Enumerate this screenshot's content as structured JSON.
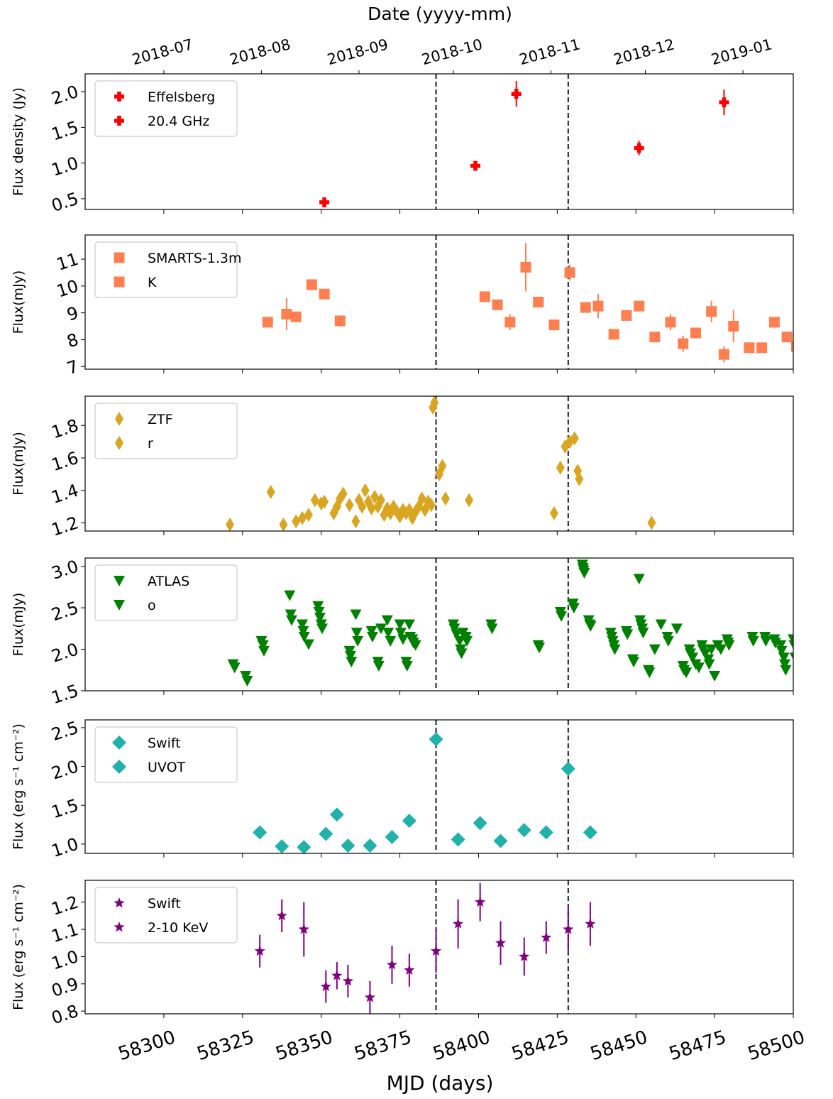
{
  "figure": {
    "top_xlabel": "Date (yyyy-mm)",
    "bottom_xlabel": "MJD (days)",
    "top_ticks": [
      {
        "label": "2018-07",
        "mjd": 58300
      },
      {
        "label": "2018-08",
        "mjd": 58331
      },
      {
        "label": "2018-09",
        "mjd": 58362
      },
      {
        "label": "2018-10",
        "mjd": 58392
      },
      {
        "label": "2018-11",
        "mjd": 58423
      },
      {
        "label": "2018-12",
        "mjd": 58453
      },
      {
        "label": "2019-01",
        "mjd": 58484
      }
    ],
    "bottom_ticks": [
      "58300",
      "58325",
      "58350",
      "58375",
      "58400",
      "58425",
      "58450",
      "58475",
      "58500"
    ],
    "vlines_mjd": [
      58386.5,
      58428.5
    ],
    "xlim": [
      58275,
      58500
    ]
  },
  "chart_data": [
    {
      "type": "scatter",
      "marker": "plus",
      "color": "#ff0000",
      "ylabel": "Flux density (Jy)",
      "ylim": [
        0.35,
        2.25
      ],
      "yticks": [
        "0.5",
        "1.0",
        "1.5",
        "2.0"
      ],
      "legend": [
        "Effelsberg",
        "20.4 GHz"
      ],
      "legend_position": "top-left",
      "points": [
        {
          "x": 58351,
          "y": 0.45,
          "err": 0.05
        },
        {
          "x": 58399,
          "y": 0.96,
          "err": 0.05
        },
        {
          "x": 58412,
          "y": 1.97,
          "err": 0.18
        },
        {
          "x": 58451,
          "y": 1.21,
          "err": 0.1
        },
        {
          "x": 58478,
          "y": 1.85,
          "err": 0.18
        }
      ]
    },
    {
      "type": "scatter",
      "marker": "square",
      "color": "#ff7f50",
      "ylabel": "Flux(mJy)",
      "ylim": [
        6.9,
        11.9
      ],
      "yticks": [
        "7",
        "8",
        "9",
        "10",
        "11"
      ],
      "legend": [
        "SMARTS-1.3m",
        "K"
      ],
      "legend_position": "top-left",
      "points": [
        {
          "x": 58333,
          "y": 8.65,
          "err": 0
        },
        {
          "x": 58339,
          "y": 8.95,
          "err": 0.6
        },
        {
          "x": 58342,
          "y": 8.85,
          "err": 0
        },
        {
          "x": 58347,
          "y": 10.05,
          "err": 0
        },
        {
          "x": 58351,
          "y": 9.7,
          "err": 0
        },
        {
          "x": 58356,
          "y": 8.7,
          "err": 0
        },
        {
          "x": 58402,
          "y": 9.6,
          "err": 0.2
        },
        {
          "x": 58406,
          "y": 9.3,
          "err": 0
        },
        {
          "x": 58410,
          "y": 8.65,
          "err": 0.3
        },
        {
          "x": 58415,
          "y": 10.7,
          "err": 0.9
        },
        {
          "x": 58419,
          "y": 9.4,
          "err": 0.2
        },
        {
          "x": 58424,
          "y": 8.55,
          "err": 0
        },
        {
          "x": 58429,
          "y": 10.5,
          "err": 0.3
        },
        {
          "x": 58434,
          "y": 9.2,
          "err": 0
        },
        {
          "x": 58438,
          "y": 9.25,
          "err": 0.45
        },
        {
          "x": 58443,
          "y": 8.2,
          "err": 0
        },
        {
          "x": 58447,
          "y": 8.9,
          "err": 0
        },
        {
          "x": 58451,
          "y": 9.25,
          "err": 0
        },
        {
          "x": 58456,
          "y": 8.1,
          "err": 0
        },
        {
          "x": 58461,
          "y": 8.65,
          "err": 0.3
        },
        {
          "x": 58465,
          "y": 7.85,
          "err": 0.3
        },
        {
          "x": 58469,
          "y": 8.25,
          "err": 0
        },
        {
          "x": 58474,
          "y": 9.05,
          "err": 0.4
        },
        {
          "x": 58478,
          "y": 7.45,
          "err": 0.3
        },
        {
          "x": 58481,
          "y": 8.5,
          "err": 0.6
        },
        {
          "x": 58486,
          "y": 7.7,
          "err": 0
        },
        {
          "x": 58490,
          "y": 7.7,
          "err": 0
        },
        {
          "x": 58494,
          "y": 8.65,
          "err": 0
        },
        {
          "x": 58498,
          "y": 8.1,
          "err": 0
        },
        {
          "x": 58501,
          "y": 7.75,
          "err": 0.4
        }
      ]
    },
    {
      "type": "scatter",
      "marker": "diamond",
      "color": "#daa520",
      "ylabel": "Flux(mJy)",
      "ylim": [
        1.15,
        1.98
      ],
      "yticks": [
        "1.2",
        "1.4",
        "1.6",
        "1.8"
      ],
      "legend": [
        "ZTF",
        "r"
      ],
      "legend_position": "top-left",
      "points": [
        {
          "x": 58321,
          "y": 1.19
        },
        {
          "x": 58334,
          "y": 1.39
        },
        {
          "x": 58338,
          "y": 1.19
        },
        {
          "x": 58342,
          "y": 1.21
        },
        {
          "x": 58344,
          "y": 1.23
        },
        {
          "x": 58346,
          "y": 1.25
        },
        {
          "x": 58348,
          "y": 1.34
        },
        {
          "x": 58350,
          "y": 1.32
        },
        {
          "x": 58351,
          "y": 1.33
        },
        {
          "x": 58354,
          "y": 1.26
        },
        {
          "x": 58355,
          "y": 1.3
        },
        {
          "x": 58356,
          "y": 1.35
        },
        {
          "x": 58357,
          "y": 1.38
        },
        {
          "x": 58359,
          "y": 1.31
        },
        {
          "x": 58361,
          "y": 1.21
        },
        {
          "x": 58362,
          "y": 1.34
        },
        {
          "x": 58363,
          "y": 1.3
        },
        {
          "x": 58364,
          "y": 1.4
        },
        {
          "x": 58365,
          "y": 1.33
        },
        {
          "x": 58366,
          "y": 1.29
        },
        {
          "x": 58367,
          "y": 1.36
        },
        {
          "x": 58368,
          "y": 1.3
        },
        {
          "x": 58369,
          "y": 1.34
        },
        {
          "x": 58370,
          "y": 1.25
        },
        {
          "x": 58371,
          "y": 1.29
        },
        {
          "x": 58372,
          "y": 1.26
        },
        {
          "x": 58373,
          "y": 1.3
        },
        {
          "x": 58374,
          "y": 1.27
        },
        {
          "x": 58375,
          "y": 1.24
        },
        {
          "x": 58376,
          "y": 1.28
        },
        {
          "x": 58377,
          "y": 1.26
        },
        {
          "x": 58378,
          "y": 1.28
        },
        {
          "x": 58379,
          "y": 1.23
        },
        {
          "x": 58380,
          "y": 1.27
        },
        {
          "x": 58381,
          "y": 1.3
        },
        {
          "x": 58382,
          "y": 1.35
        },
        {
          "x": 58383,
          "y": 1.28
        },
        {
          "x": 58384,
          "y": 1.33
        },
        {
          "x": 58385,
          "y": 1.31
        },
        {
          "x": 58385.5,
          "y": 1.91
        },
        {
          "x": 58386,
          "y": 1.94
        },
        {
          "x": 58387.5,
          "y": 1.5
        },
        {
          "x": 58388.5,
          "y": 1.55
        },
        {
          "x": 58389.5,
          "y": 1.35
        },
        {
          "x": 58397,
          "y": 1.34
        },
        {
          "x": 58424,
          "y": 1.26
        },
        {
          "x": 58426,
          "y": 1.54
        },
        {
          "x": 58427.5,
          "y": 1.67
        },
        {
          "x": 58429,
          "y": 1.7
        },
        {
          "x": 58430.5,
          "y": 1.72
        },
        {
          "x": 58431.5,
          "y": 1.52
        },
        {
          "x": 58432,
          "y": 1.47
        },
        {
          "x": 58455,
          "y": 1.2
        }
      ]
    },
    {
      "type": "scatter",
      "marker": "triangle-down",
      "color": "#008000",
      "ylabel": "Flux(mJy)",
      "ylim": [
        1.5,
        3.1
      ],
      "yticks": [
        "1.5",
        "2.0",
        "2.5",
        "3.0"
      ],
      "legend": [
        "ATLAS",
        "o"
      ],
      "legend_position": "top-left",
      "points": [
        {
          "x": 58322,
          "y": 1.82
        },
        {
          "x": 58322.5,
          "y": 1.78
        },
        {
          "x": 58326,
          "y": 1.68
        },
        {
          "x": 58326.5,
          "y": 1.62
        },
        {
          "x": 58331,
          "y": 2.1
        },
        {
          "x": 58331.5,
          "y": 2.05
        },
        {
          "x": 58331.8,
          "y": 1.98
        },
        {
          "x": 58340,
          "y": 2.65
        },
        {
          "x": 58340.3,
          "y": 2.42
        },
        {
          "x": 58340.6,
          "y": 2.35
        },
        {
          "x": 58344,
          "y": 2.3
        },
        {
          "x": 58344.3,
          "y": 2.22
        },
        {
          "x": 58344.6,
          "y": 2.15
        },
        {
          "x": 58346,
          "y": 2.06
        },
        {
          "x": 58349,
          "y": 2.52
        },
        {
          "x": 58349.3,
          "y": 2.45
        },
        {
          "x": 58349.6,
          "y": 2.38
        },
        {
          "x": 58350,
          "y": 2.3
        },
        {
          "x": 58350.3,
          "y": 2.25
        },
        {
          "x": 58359,
          "y": 1.98
        },
        {
          "x": 58359.3,
          "y": 1.92
        },
        {
          "x": 58359.6,
          "y": 1.85
        },
        {
          "x": 58361,
          "y": 2.42
        },
        {
          "x": 58361.3,
          "y": 2.2
        },
        {
          "x": 58361.6,
          "y": 2.1
        },
        {
          "x": 58366,
          "y": 2.22
        },
        {
          "x": 58366.3,
          "y": 2.15
        },
        {
          "x": 58368,
          "y": 1.85
        },
        {
          "x": 58368.3,
          "y": 1.8
        },
        {
          "x": 58369,
          "y": 2.25
        },
        {
          "x": 58371,
          "y": 2.35
        },
        {
          "x": 58371.3,
          "y": 2.2
        },
        {
          "x": 58372,
          "y": 2.1
        },
        {
          "x": 58375,
          "y": 2.3
        },
        {
          "x": 58375.3,
          "y": 2.2
        },
        {
          "x": 58376,
          "y": 2.12
        },
        {
          "x": 58377,
          "y": 1.85
        },
        {
          "x": 58377.3,
          "y": 1.8
        },
        {
          "x": 58378,
          "y": 2.3
        },
        {
          "x": 58378.3,
          "y": 2.15
        },
        {
          "x": 58379,
          "y": 2.12
        },
        {
          "x": 58379.3,
          "y": 2.08
        },
        {
          "x": 58380,
          "y": 2.05
        },
        {
          "x": 58392,
          "y": 2.3
        },
        {
          "x": 58392.3,
          "y": 2.25
        },
        {
          "x": 58393,
          "y": 2.18
        },
        {
          "x": 58394,
          "y": 2.1
        },
        {
          "x": 58394.3,
          "y": 2.0
        },
        {
          "x": 58394.6,
          "y": 1.95
        },
        {
          "x": 58395,
          "y": 2.2
        },
        {
          "x": 58396,
          "y": 2.15
        },
        {
          "x": 58396.3,
          "y": 2.1
        },
        {
          "x": 58404,
          "y": 2.3
        },
        {
          "x": 58404.3,
          "y": 2.25
        },
        {
          "x": 58419,
          "y": 2.05
        },
        {
          "x": 58419.3,
          "y": 2.02
        },
        {
          "x": 58426,
          "y": 2.45
        },
        {
          "x": 58426.3,
          "y": 2.4
        },
        {
          "x": 58430,
          "y": 2.55
        },
        {
          "x": 58430.3,
          "y": 2.5
        },
        {
          "x": 58433,
          "y": 3.02
        },
        {
          "x": 58433.2,
          "y": 2.98
        },
        {
          "x": 58433.4,
          "y": 2.95
        },
        {
          "x": 58433.6,
          "y": 2.92
        },
        {
          "x": 58435,
          "y": 2.35
        },
        {
          "x": 58435.3,
          "y": 2.3
        },
        {
          "x": 58435.6,
          "y": 2.28
        },
        {
          "x": 58442,
          "y": 2.2
        },
        {
          "x": 58442.3,
          "y": 2.15
        },
        {
          "x": 58442.6,
          "y": 2.1
        },
        {
          "x": 58443,
          "y": 2.05
        },
        {
          "x": 58443.3,
          "y": 2.0
        },
        {
          "x": 58447,
          "y": 2.22
        },
        {
          "x": 58447.3,
          "y": 2.18
        },
        {
          "x": 58449,
          "y": 1.88
        },
        {
          "x": 58449.3,
          "y": 1.85
        },
        {
          "x": 58451,
          "y": 2.85
        },
        {
          "x": 58451.3,
          "y": 2.35
        },
        {
          "x": 58451.6,
          "y": 2.3
        },
        {
          "x": 58452,
          "y": 2.25
        },
        {
          "x": 58452.3,
          "y": 2.2
        },
        {
          "x": 58454,
          "y": 1.75
        },
        {
          "x": 58454.3,
          "y": 1.72
        },
        {
          "x": 58456,
          "y": 2.0
        },
        {
          "x": 58458,
          "y": 2.3
        },
        {
          "x": 58460,
          "y": 2.15
        },
        {
          "x": 58460.3,
          "y": 2.1
        },
        {
          "x": 58463,
          "y": 2.25
        },
        {
          "x": 58465,
          "y": 1.8
        },
        {
          "x": 58465.3,
          "y": 1.75
        },
        {
          "x": 58466,
          "y": 1.72
        },
        {
          "x": 58467,
          "y": 2.0
        },
        {
          "x": 58467.3,
          "y": 1.95
        },
        {
          "x": 58468,
          "y": 1.9
        },
        {
          "x": 58469,
          "y": 1.82
        },
        {
          "x": 58470,
          "y": 1.78
        },
        {
          "x": 58471,
          "y": 2.05
        },
        {
          "x": 58471.3,
          "y": 2.0
        },
        {
          "x": 58472,
          "y": 1.95
        },
        {
          "x": 58473,
          "y": 1.88
        },
        {
          "x": 58473.3,
          "y": 1.82
        },
        {
          "x": 58474,
          "y": 2.0
        },
        {
          "x": 58475,
          "y": 1.68
        },
        {
          "x": 58476,
          "y": 2.05
        },
        {
          "x": 58477,
          "y": 2.0
        },
        {
          "x": 58479,
          "y": 2.12
        },
        {
          "x": 58479.3,
          "y": 2.08
        },
        {
          "x": 58479.6,
          "y": 2.05
        },
        {
          "x": 58487,
          "y": 2.15
        },
        {
          "x": 58487.3,
          "y": 2.1
        },
        {
          "x": 58491,
          "y": 2.15
        },
        {
          "x": 58491.3,
          "y": 2.1
        },
        {
          "x": 58494,
          "y": 2.12
        },
        {
          "x": 58494.3,
          "y": 2.08
        },
        {
          "x": 58496,
          "y": 2.05
        },
        {
          "x": 58496.3,
          "y": 1.98
        },
        {
          "x": 58497,
          "y": 1.9
        },
        {
          "x": 58497.3,
          "y": 1.82
        },
        {
          "x": 58497.6,
          "y": 1.75
        },
        {
          "x": 58500,
          "y": 2.12
        },
        {
          "x": 58500.3,
          "y": 2.05
        },
        {
          "x": 58500.6,
          "y": 1.9
        }
      ]
    },
    {
      "type": "scatter",
      "marker": "thin-diamond",
      "color": "#20b2aa",
      "ylabel": "Flux (erg s$^{-1}$ cm$^{-2}$)",
      "ylabel_display": "Flux (erg s⁻¹ cm⁻²)",
      "ylim": [
        0.88,
        2.6
      ],
      "yticks": [
        "1.0",
        "1.5",
        "2.0",
        "2.5"
      ],
      "legend": [
        "Swift",
        "UVOT"
      ],
      "legend_position": "top-left",
      "points": [
        {
          "x": 58330.5,
          "y": 1.15
        },
        {
          "x": 58337.5,
          "y": 0.97
        },
        {
          "x": 58344.5,
          "y": 0.96
        },
        {
          "x": 58351.5,
          "y": 1.13
        },
        {
          "x": 58355,
          "y": 1.38
        },
        {
          "x": 58358.5,
          "y": 0.98
        },
        {
          "x": 58365.5,
          "y": 0.98
        },
        {
          "x": 58372.5,
          "y": 1.09
        },
        {
          "x": 58378,
          "y": 1.3
        },
        {
          "x": 58386.5,
          "y": 2.35
        },
        {
          "x": 58393.5,
          "y": 1.06
        },
        {
          "x": 58400.5,
          "y": 1.27
        },
        {
          "x": 58407,
          "y": 1.04
        },
        {
          "x": 58414.5,
          "y": 1.18
        },
        {
          "x": 58421.5,
          "y": 1.15
        },
        {
          "x": 58428.5,
          "y": 1.97
        },
        {
          "x": 58435.5,
          "y": 1.15
        }
      ]
    },
    {
      "type": "scatter",
      "marker": "star",
      "color": "#800080",
      "ylabel": "Flux (erg s$^{-1}$ cm$^{-2}$)",
      "ylabel_display": "Flux (erg s⁻¹ cm⁻²)",
      "ylim": [
        0.79,
        1.28
      ],
      "yticks": [
        "0.8",
        "0.9",
        "1.0",
        "1.1",
        "1.2"
      ],
      "legend": [
        "Swift",
        "2-10 KeV"
      ],
      "legend_position": "top-left",
      "points": [
        {
          "x": 58330.5,
          "y": 1.02,
          "err": 0.06
        },
        {
          "x": 58337.5,
          "y": 1.15,
          "err": 0.06
        },
        {
          "x": 58344.5,
          "y": 1.1,
          "err": 0.1
        },
        {
          "x": 58351.5,
          "y": 0.89,
          "err": 0.06
        },
        {
          "x": 58355,
          "y": 0.93,
          "err": 0.05
        },
        {
          "x": 58358.5,
          "y": 0.91,
          "err": 0.06
        },
        {
          "x": 58365.5,
          "y": 0.85,
          "err": 0.06
        },
        {
          "x": 58372.5,
          "y": 0.97,
          "err": 0.07
        },
        {
          "x": 58378,
          "y": 0.95,
          "err": 0.06
        },
        {
          "x": 58386.5,
          "y": 1.02,
          "err": 0.08
        },
        {
          "x": 58393.5,
          "y": 1.12,
          "err": 0.09
        },
        {
          "x": 58400.5,
          "y": 1.2,
          "err": 0.07
        },
        {
          "x": 58407,
          "y": 1.05,
          "err": 0.08
        },
        {
          "x": 58414.5,
          "y": 1.0,
          "err": 0.07
        },
        {
          "x": 58421.5,
          "y": 1.07,
          "err": 0.06
        },
        {
          "x": 58428.5,
          "y": 1.1,
          "err": 0.08
        },
        {
          "x": 58435.5,
          "y": 1.12,
          "err": 0.08
        }
      ]
    }
  ]
}
